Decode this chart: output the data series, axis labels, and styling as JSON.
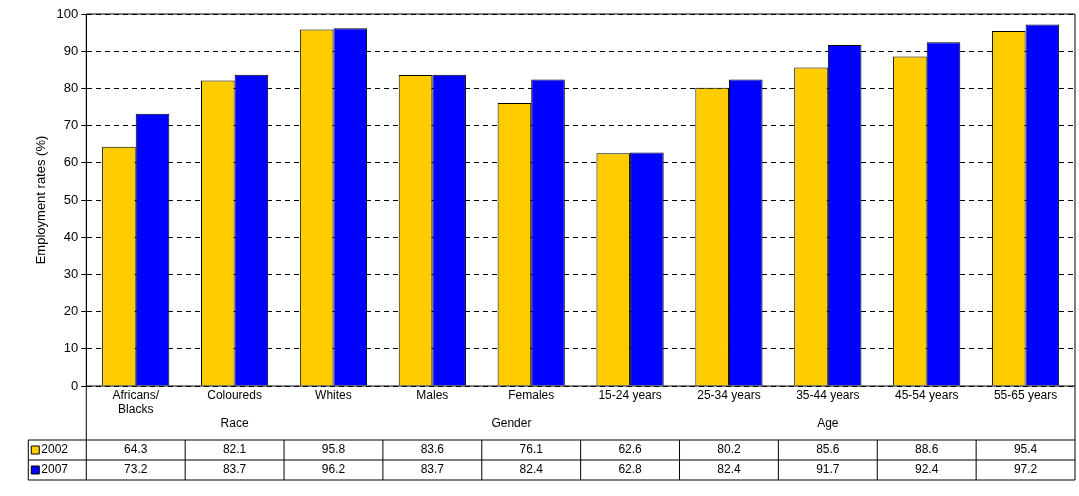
{
  "chart_data": {
    "type": "bar",
    "ylabel": "Employment rates (%)",
    "categories": [
      "Africans/ Blacks",
      "Coloureds",
      "Whites",
      "Males",
      "Females",
      "15-24 years",
      "25-34 years",
      "35-44 years",
      "45-54 years",
      "55-65 years"
    ],
    "series": [
      {
        "name": "2002",
        "color": "#ffcc00",
        "values": [
          64.3,
          82.1,
          95.8,
          83.6,
          76.1,
          62.6,
          80.2,
          85.6,
          88.6,
          95.4
        ]
      },
      {
        "name": "2007",
        "color": "#0000ff",
        "values": [
          73.2,
          83.7,
          96.2,
          83.7,
          82.4,
          62.8,
          82.4,
          91.7,
          92.4,
          97.2
        ]
      }
    ],
    "annotations": [
      "Race",
      "Gender",
      "Age"
    ],
    "ylim": [
      0,
      100
    ],
    "yticks": [
      0,
      10,
      20,
      30,
      40,
      50,
      60,
      70,
      80,
      90,
      100
    ],
    "grid": "y",
    "data_labels": true,
    "legend": "bottom left"
  }
}
